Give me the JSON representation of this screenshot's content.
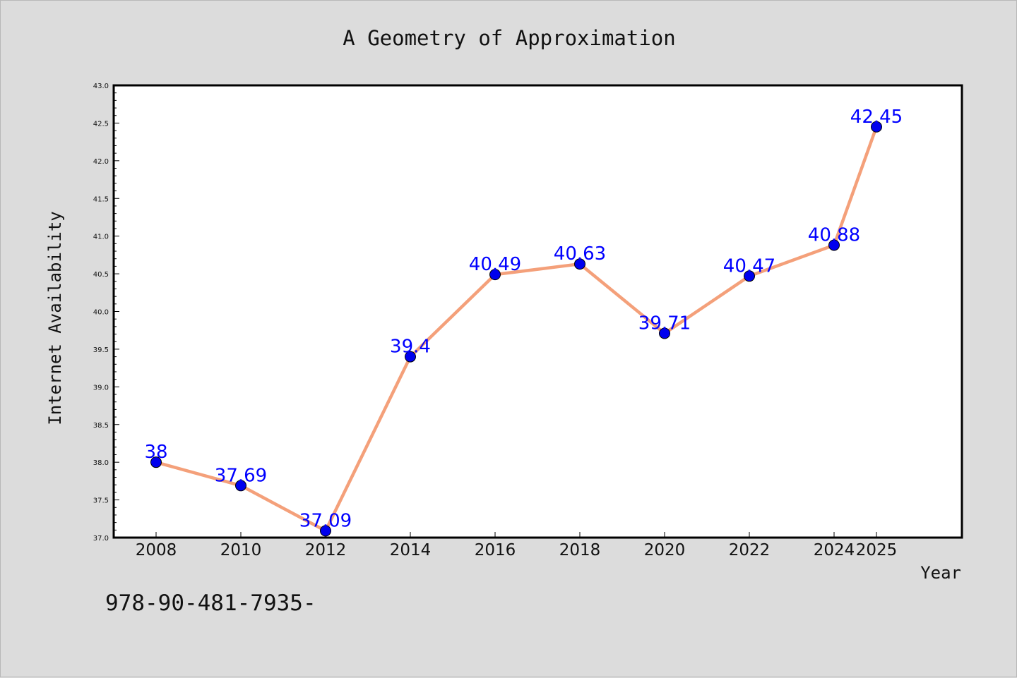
{
  "chart_data": {
    "type": "line",
    "title": "A Geometry of Approximation",
    "xlabel": "Year",
    "ylabel": "Internet Availability",
    "categories": [
      "2008",
      "2010",
      "2012",
      "2014",
      "2016",
      "2018",
      "2020",
      "2022",
      "2024",
      "2025"
    ],
    "series": [
      {
        "values": [
          38,
          37.69,
          37.09,
          39.4,
          40.49,
          40.63,
          39.71,
          40.47,
          40.88,
          42.45
        ],
        "data_labels": [
          "38",
          "37.69",
          "37.09",
          "39.4",
          "40.49",
          "40.63",
          "39.71",
          "40.47",
          "40.88",
          "42.45"
        ],
        "line_color": "#f4a07a",
        "marker_color": "#0000ee"
      }
    ],
    "ylim": [
      37.0,
      43.0
    ],
    "yticks": [
      "37.0",
      "37.5",
      "38.0",
      "38.5",
      "39.0",
      "39.5",
      "40.0",
      "40.5",
      "41.0",
      "41.5",
      "42.0",
      "42.5",
      "43.0"
    ],
    "grid": false,
    "legend": "none",
    "label_color": "#0000ff",
    "plot_background": "#ffffff",
    "figure_background": "#dcdcdc"
  },
  "footer": {
    "text": "978-90-481-7935-"
  }
}
